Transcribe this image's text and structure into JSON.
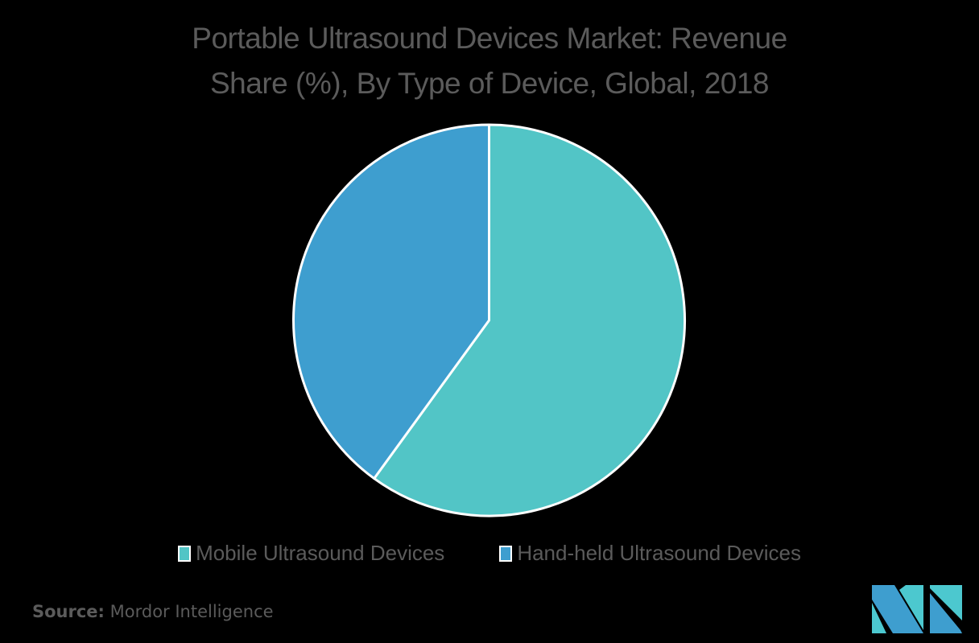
{
  "header": {
    "title_line1": "Portable Ultrasound Devices Market: Revenue",
    "title_line2": "Share (%), By Type of Device, Global, 2018"
  },
  "legend": {
    "items": [
      {
        "label": "Mobile Ultrasound Devices",
        "color": "#52c5c6"
      },
      {
        "label": "Hand-held Ultrasound Devices",
        "color": "#3e9ecf"
      }
    ]
  },
  "footer": {
    "source_label": "Source:",
    "source_value": "Mordor Intelligence"
  },
  "logo": {
    "icon": "mordor-intelligence-logo-icon",
    "colors": [
      "#3e9ecf",
      "#4cc8cf"
    ]
  },
  "chart_data": {
    "type": "pie",
    "title": "Portable Ultrasound Devices Market: Revenue Share (%), By Type of Device, Global, 2018",
    "categories": [
      "Mobile Ultrasound Devices",
      "Hand-held Ultrasound Devices"
    ],
    "values": [
      60,
      40
    ],
    "colors": [
      "#52c5c6",
      "#3e9ecf"
    ],
    "start_angle": "12 o'clock, clockwise",
    "legend_position": "bottom",
    "data_labels": false,
    "source": "Mordor Intelligence"
  }
}
